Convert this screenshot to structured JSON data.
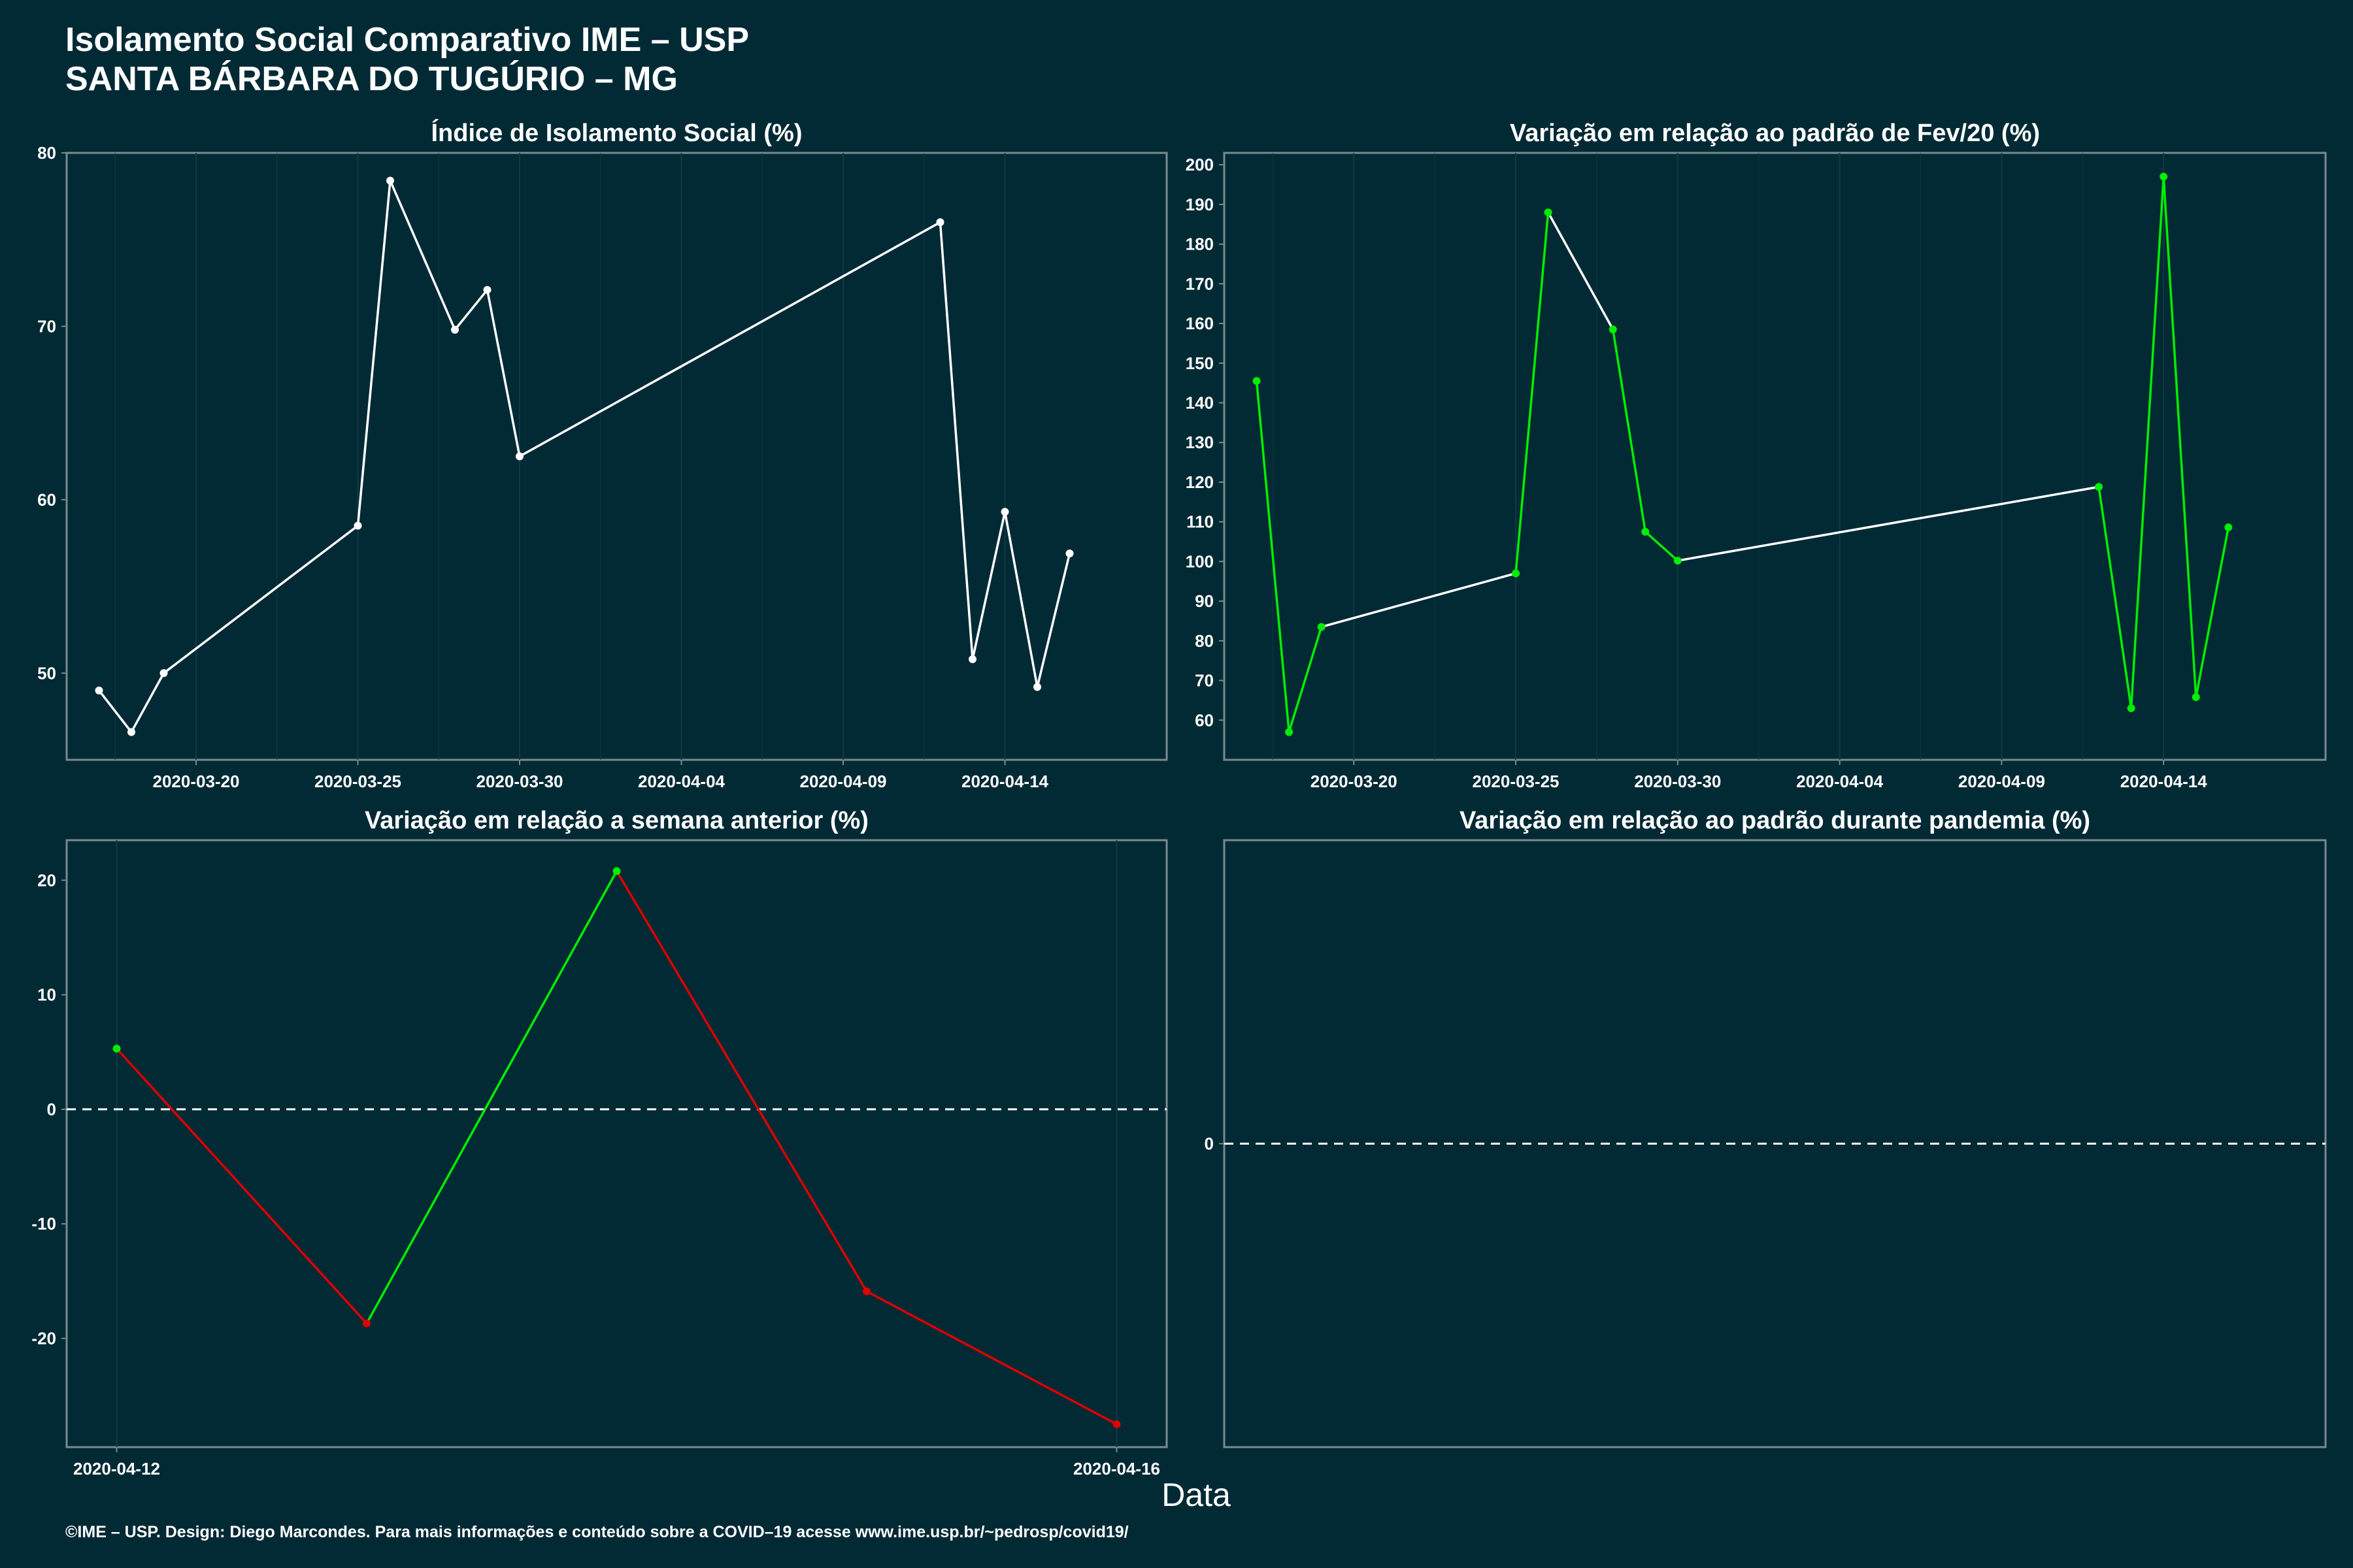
{
  "header": {
    "title_line1": "Isolamento Social Comparativo IME – USP",
    "title_line2": "SANTA BÁRBARA DO TUGÚRIO – MG"
  },
  "xlabel": "Data",
  "caption": "©IME – USP. Design: Diego Marcondes. Para mais informações e conteúdo sobre a COVID–19 acesse www.ime.usp.br/~pedrosp/covid19/",
  "colors": {
    "background": "#022a35",
    "white": "#ffffff",
    "up": "#00ee00",
    "down": "#dd0000",
    "grid": "#0d3a44",
    "border": "#7a8a8e"
  },
  "chart_data": [
    {
      "id": "isolamento",
      "type": "line",
      "title": "Índice de Isolamento Social (%)",
      "x_axis": "date",
      "xlim": [
        "2020-03-16",
        "2020-04-19"
      ],
      "ylim": [
        45,
        80
      ],
      "y_ticks": [
        50,
        60,
        70,
        80
      ],
      "x_ticks": [
        "2020-03-20",
        "2020-03-25",
        "2020-03-30",
        "2020-04-04",
        "2020-04-09",
        "2020-04-14"
      ],
      "point_color": "#ffffff",
      "line_color_mode": "single",
      "points": [
        {
          "x": "2020-03-17",
          "y": 49.0
        },
        {
          "x": "2020-03-18",
          "y": 46.6
        },
        {
          "x": "2020-03-19",
          "y": 50.0
        },
        {
          "x": "2020-03-25",
          "y": 58.5
        },
        {
          "x": "2020-03-26",
          "y": 78.4
        },
        {
          "x": "2020-03-28",
          "y": 69.8
        },
        {
          "x": "2020-03-29",
          "y": 72.1
        },
        {
          "x": "2020-03-30",
          "y": 62.5
        },
        {
          "x": "2020-04-12",
          "y": 76.0
        },
        {
          "x": "2020-04-13",
          "y": 50.8
        },
        {
          "x": "2020-04-14",
          "y": 59.3
        },
        {
          "x": "2020-04-15",
          "y": 49.2
        },
        {
          "x": "2020-04-16",
          "y": 56.9
        }
      ]
    },
    {
      "id": "fev20",
      "type": "line",
      "title": "Variação em relação ao padrão de Fev/20 (%)",
      "x_axis": "date",
      "xlim": [
        "2020-03-16",
        "2020-04-19"
      ],
      "ylim": [
        50,
        203
      ],
      "y_ticks": [
        60,
        70,
        80,
        90,
        100,
        110,
        120,
        130,
        140,
        150,
        160,
        170,
        180,
        190,
        200
      ],
      "x_ticks": [
        "2020-03-20",
        "2020-03-25",
        "2020-03-30",
        "2020-04-04",
        "2020-04-09",
        "2020-04-14"
      ],
      "point_color": "#00ee00",
      "line_color_mode": "consecutive-day",
      "points": [
        {
          "x": "2020-03-17",
          "y": 145.5
        },
        {
          "x": "2020-03-18",
          "y": 57.0
        },
        {
          "x": "2020-03-19",
          "y": 83.5
        },
        {
          "x": "2020-03-25",
          "y": 97.0
        },
        {
          "x": "2020-03-26",
          "y": 188.0
        },
        {
          "x": "2020-03-28",
          "y": 158.5
        },
        {
          "x": "2020-03-29",
          "y": 107.5
        },
        {
          "x": "2020-03-30",
          "y": 100.2
        },
        {
          "x": "2020-04-12",
          "y": 118.8
        },
        {
          "x": "2020-04-13",
          "y": 63.0
        },
        {
          "x": "2020-04-14",
          "y": 197.0
        },
        {
          "x": "2020-04-15",
          "y": 65.8
        },
        {
          "x": "2020-04-16",
          "y": 108.6
        }
      ]
    },
    {
      "id": "semana",
      "type": "line",
      "title": "Variação em relação a semana anterior (%)",
      "x_axis": "date",
      "xlim": [
        "2020-04-11.8",
        "2020-04-16.2"
      ],
      "xlim_days": [
        -0.2,
        4.2
      ],
      "ylim": [
        -29.5,
        23.5
      ],
      "y_ticks": [
        -20,
        -10,
        0,
        10,
        20
      ],
      "x_ticks": [
        "2020-04-12",
        "2020-04-16"
      ],
      "zero_line": true,
      "line_color_mode": "direction",
      "points": [
        {
          "x": "2020-04-12",
          "y": 5.3
        },
        {
          "x": "2020-04-13",
          "y": -18.7
        },
        {
          "x": "2020-04-14",
          "y": 20.8
        },
        {
          "x": "2020-04-15",
          "y": -15.9
        },
        {
          "x": "2020-04-16",
          "y": -27.5
        }
      ]
    },
    {
      "id": "pandemia",
      "type": "line",
      "title": "Variação em relação ao padrão durante pandemia (%)",
      "ylim": [
        -1,
        1
      ],
      "y_ticks": [
        0
      ],
      "x_ticks": [],
      "zero_line": true,
      "points": []
    }
  ]
}
